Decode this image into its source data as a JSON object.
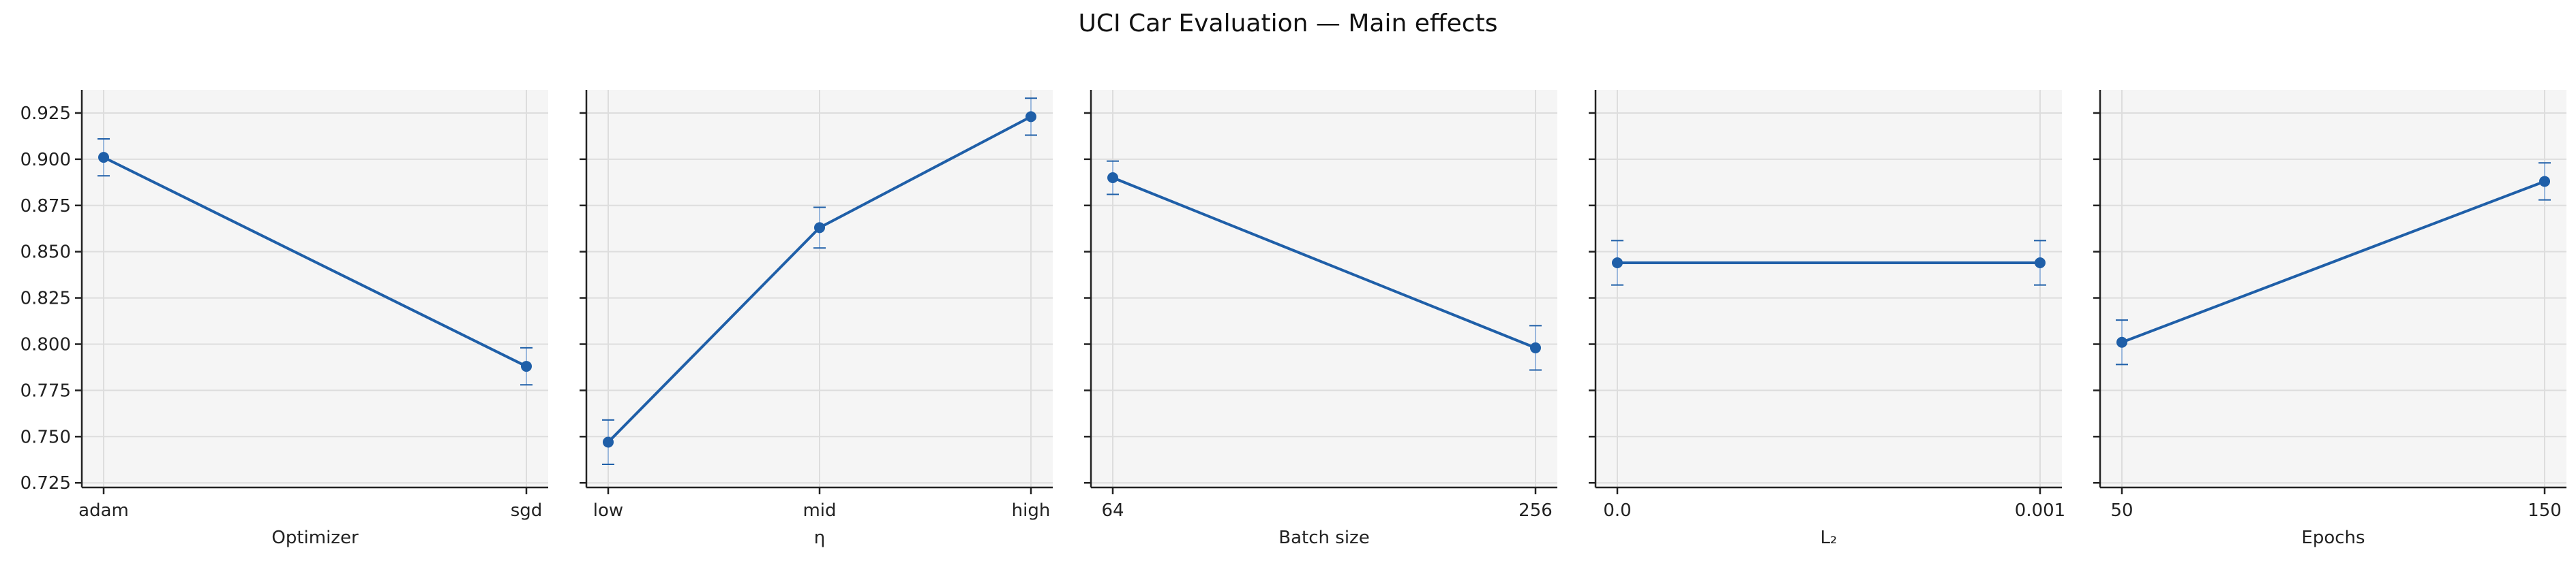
{
  "title": "UCI Car Evaluation — Main effects",
  "colors": {
    "line": "#1f5fa8",
    "panel_bg": "#f5f5f5",
    "grid": "#dddddd",
    "axis": "#222222"
  },
  "chart_data": [
    {
      "type": "line",
      "xlabel": "Optimizer",
      "ylabel": "",
      "ylim": [
        0.7225,
        0.9375
      ],
      "yticks": [
        "0.725",
        "0.750",
        "0.775",
        "0.800",
        "0.825",
        "0.850",
        "0.875",
        "0.900",
        "0.925"
      ],
      "categories": [
        "adam",
        "sgd"
      ],
      "values": [
        0.901,
        0.788
      ],
      "errors": [
        0.01,
        0.01
      ],
      "grid": true
    },
    {
      "type": "line",
      "xlabel": "η",
      "ylabel": "",
      "ylim": [
        0.7225,
        0.9375
      ],
      "categories": [
        "low",
        "mid",
        "high"
      ],
      "values": [
        0.747,
        0.863,
        0.923
      ],
      "errors": [
        0.012,
        0.011,
        0.01
      ],
      "grid": true
    },
    {
      "type": "line",
      "xlabel": "Batch size",
      "ylabel": "",
      "ylim": [
        0.7225,
        0.9375
      ],
      "categories": [
        "64",
        "256"
      ],
      "values": [
        0.89,
        0.798
      ],
      "errors": [
        0.009,
        0.012
      ],
      "grid": true
    },
    {
      "type": "line",
      "xlabel": "L₂",
      "ylabel": "",
      "ylim": [
        0.7225,
        0.9375
      ],
      "categories": [
        "0.0",
        "0.001"
      ],
      "values": [
        0.844,
        0.844
      ],
      "errors": [
        0.012,
        0.012
      ],
      "grid": true
    },
    {
      "type": "line",
      "xlabel": "Epochs",
      "ylabel": "",
      "ylim": [
        0.7225,
        0.9375
      ],
      "categories": [
        "50",
        "150"
      ],
      "values": [
        0.801,
        0.888
      ],
      "errors": [
        0.012,
        0.01
      ],
      "grid": true
    }
  ]
}
